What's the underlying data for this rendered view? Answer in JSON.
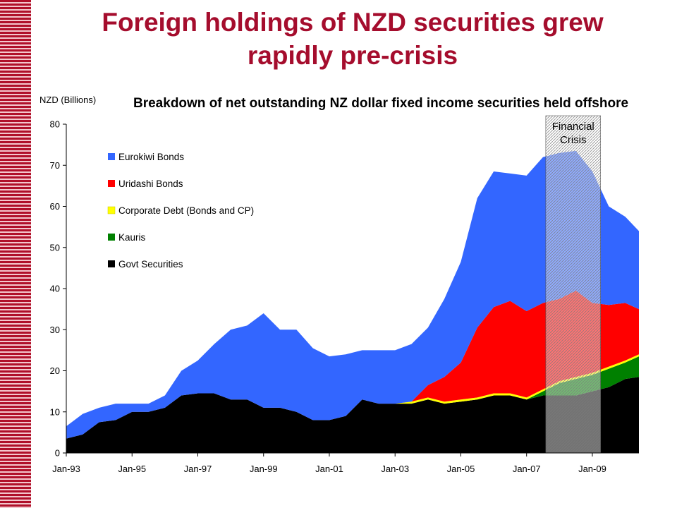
{
  "slide": {
    "title_line1": "Foreign holdings of NZD securities grew",
    "title_line2": "rapidly pre-crisis",
    "stripe_color": "#b0102a"
  },
  "chart_data": {
    "type": "area",
    "stacked": true,
    "title": "Breakdown of net outstanding NZ dollar fixed income securities held offshore",
    "ylabel": "NZD (Billions)",
    "xlabel": "",
    "ylim": [
      0,
      80
    ],
    "yticks": [
      0,
      10,
      20,
      30,
      40,
      50,
      60,
      70,
      80
    ],
    "xlim": [
      "Jan-93",
      "Jun-10"
    ],
    "xticks": [
      "Jan-93",
      "Jan-95",
      "Jan-97",
      "Jan-99",
      "Jan-01",
      "Jan-03",
      "Jan-05",
      "Jan-07",
      "Jan-09"
    ],
    "grid": false,
    "legend": "upper-left inside plot",
    "annotation": {
      "text_line1": "Financial",
      "text_line2": "Crisis",
      "start": "Aug-07",
      "end": "Apr-09",
      "style": "hatched grey shading"
    },
    "x": [
      "Jan-93",
      "Jul-93",
      "Jan-94",
      "Jul-94",
      "Jan-95",
      "Jul-95",
      "Jan-96",
      "Jul-96",
      "Jan-97",
      "Jul-97",
      "Jan-98",
      "Jul-98",
      "Jan-99",
      "Jul-99",
      "Jan-00",
      "Jul-00",
      "Jan-01",
      "Jul-01",
      "Jan-02",
      "Jul-02",
      "Jan-03",
      "Jul-03",
      "Jan-04",
      "Jul-04",
      "Jan-05",
      "Jul-05",
      "Jan-06",
      "Jul-06",
      "Jan-07",
      "Jul-07",
      "Jan-08",
      "Jul-08",
      "Jan-09",
      "Jul-09",
      "Jan-10",
      "Jun-10"
    ],
    "series": [
      {
        "name": "Govt Securities",
        "color": "#000000",
        "values": [
          3.5,
          4.5,
          7.5,
          8,
          10,
          10,
          11,
          14,
          14.5,
          14.5,
          13,
          13,
          11,
          11,
          10,
          8,
          8,
          9,
          13,
          12,
          12,
          12,
          13,
          12,
          12.5,
          13,
          14,
          14,
          13,
          14,
          14,
          14,
          15,
          16,
          18,
          18.5
        ]
      },
      {
        "name": "Kauris",
        "color": "#008000",
        "values": [
          0,
          0,
          0,
          0,
          0,
          0,
          0,
          0,
          0,
          0,
          0,
          0,
          0,
          0,
          0,
          0,
          0,
          0,
          0,
          0,
          0,
          0,
          0,
          0,
          0,
          0,
          0,
          0,
          0,
          1,
          3,
          4,
          4,
          4.5,
          4,
          5
        ]
      },
      {
        "name": "Corporate Debt (Bonds and CP)",
        "color": "#ffff00",
        "values": [
          0,
          0,
          0,
          0,
          0,
          0,
          0,
          0,
          0,
          0,
          0,
          0,
          0,
          0,
          0,
          0,
          0,
          0,
          0,
          0,
          0,
          0.5,
          0.5,
          0.5,
          0.5,
          0.5,
          0.5,
          0.5,
          0.5,
          0.5,
          0.5,
          0.5,
          0.5,
          0.5,
          0.5,
          0.5
        ]
      },
      {
        "name": "Uridashi Bonds",
        "color": "#ff0000",
        "values": [
          0,
          0,
          0,
          0,
          0,
          0,
          0,
          0,
          0,
          0,
          0,
          0,
          0,
          0,
          0,
          0,
          0,
          0,
          0,
          0,
          0,
          0,
          3,
          6,
          9,
          17,
          21,
          22.5,
          21,
          21,
          20,
          21,
          17,
          15,
          14,
          11
        ]
      },
      {
        "name": "Eurokiwi Bonds",
        "color": "#3366ff",
        "values": [
          3,
          5,
          3.5,
          4,
          2,
          2,
          3,
          6,
          8,
          12,
          17,
          18,
          23,
          19,
          20,
          17.5,
          15.5,
          15,
          12,
          13,
          13,
          14,
          14,
          19,
          24.5,
          31.5,
          33,
          31,
          33,
          35.5,
          35.5,
          34,
          32,
          24,
          21,
          19
        ]
      }
    ]
  }
}
